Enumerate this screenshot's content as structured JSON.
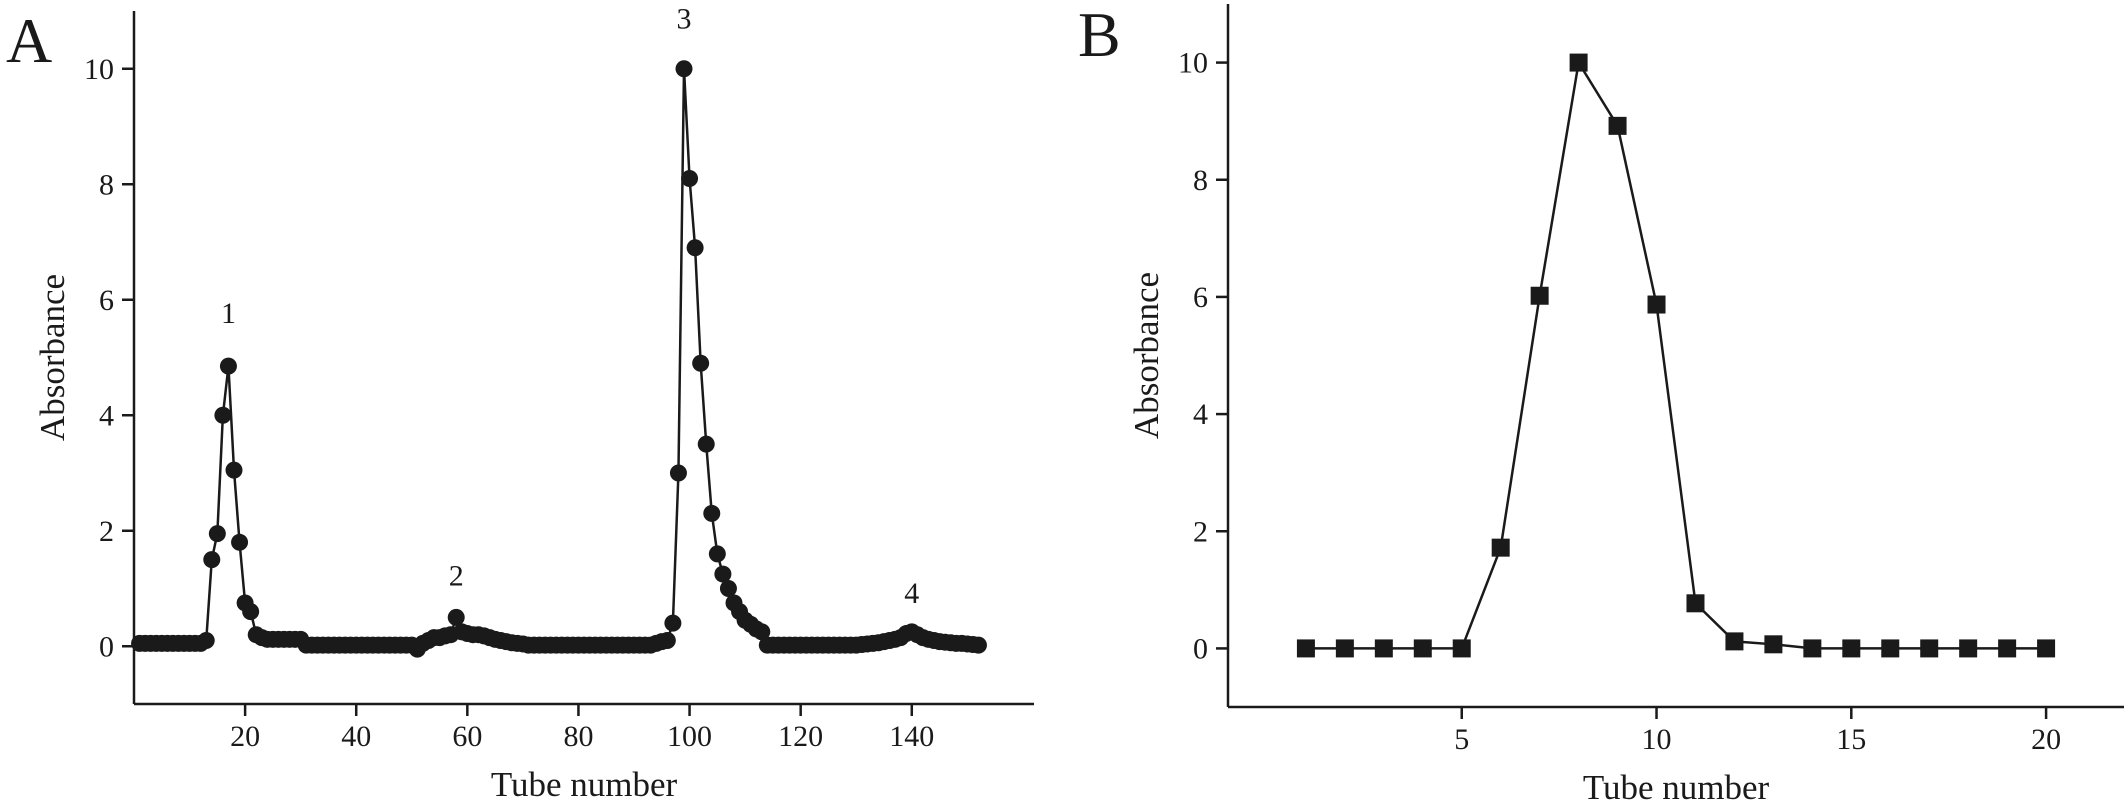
{
  "chart_data": [
    {
      "type": "line",
      "panel_label": "A",
      "xlabel": "Tube number",
      "ylabel": "Absorbance",
      "marker": "circle",
      "color": "#1a1a1a",
      "xlim": [
        0,
        162
      ],
      "xticks": [
        20,
        40,
        60,
        80,
        100,
        120,
        140
      ],
      "ylim": [
        -1,
        11
      ],
      "yticks": [
        0,
        2,
        4,
        6,
        8,
        10
      ],
      "x": [
        1,
        2,
        3,
        4,
        5,
        6,
        7,
        8,
        9,
        10,
        11,
        12,
        13,
        14,
        15,
        16,
        17,
        18,
        19,
        20,
        21,
        22,
        23,
        24,
        25,
        26,
        27,
        28,
        29,
        30,
        31,
        32,
        33,
        34,
        35,
        36,
        37,
        38,
        39,
        40,
        41,
        42,
        43,
        44,
        45,
        46,
        47,
        48,
        49,
        50,
        51,
        52,
        53,
        54,
        55,
        56,
        57,
        58,
        59,
        60,
        61,
        62,
        63,
        64,
        65,
        66,
        67,
        68,
        69,
        70,
        71,
        72,
        73,
        74,
        75,
        76,
        77,
        78,
        79,
        80,
        81,
        82,
        83,
        84,
        85,
        86,
        87,
        88,
        89,
        90,
        91,
        92,
        93,
        94,
        95,
        96,
        97,
        98,
        99,
        100,
        101,
        102,
        103,
        104,
        105,
        106,
        107,
        108,
        109,
        110,
        111,
        112,
        113,
        114,
        115,
        116,
        117,
        118,
        119,
        120,
        121,
        122,
        123,
        124,
        125,
        126,
        127,
        128,
        129,
        130,
        131,
        132,
        133,
        134,
        135,
        136,
        137,
        138,
        139,
        140,
        141,
        142,
        143,
        144,
        145,
        146,
        147,
        148,
        149,
        150,
        151,
        152
      ],
      "values": [
        0.05,
        0.05,
        0.05,
        0.05,
        0.05,
        0.05,
        0.05,
        0.05,
        0.05,
        0.05,
        0.05,
        0.05,
        0.1,
        1.5,
        1.95,
        4.0,
        4.85,
        3.05,
        1.8,
        0.75,
        0.6,
        0.2,
        0.15,
        0.12,
        0.12,
        0.12,
        0.12,
        0.12,
        0.12,
        0.12,
        0.02,
        0.02,
        0.02,
        0.02,
        0.02,
        0.02,
        0.02,
        0.02,
        0.02,
        0.02,
        0.02,
        0.02,
        0.02,
        0.02,
        0.02,
        0.02,
        0.02,
        0.02,
        0.02,
        0.02,
        -0.05,
        0.05,
        0.1,
        0.15,
        0.15,
        0.18,
        0.2,
        0.5,
        0.25,
        0.22,
        0.2,
        0.2,
        0.18,
        0.15,
        0.12,
        0.1,
        0.08,
        0.06,
        0.05,
        0.04,
        0.02,
        0.02,
        0.02,
        0.02,
        0.02,
        0.02,
        0.02,
        0.02,
        0.02,
        0.02,
        0.02,
        0.02,
        0.02,
        0.02,
        0.02,
        0.02,
        0.02,
        0.02,
        0.02,
        0.02,
        0.02,
        0.02,
        0.02,
        0.05,
        0.08,
        0.1,
        0.4,
        3.0,
        10.0,
        8.1,
        6.9,
        4.9,
        3.5,
        2.3,
        1.6,
        1.25,
        1.0,
        0.75,
        0.6,
        0.45,
        0.38,
        0.3,
        0.25,
        0.02,
        0.02,
        0.02,
        0.02,
        0.02,
        0.02,
        0.02,
        0.02,
        0.02,
        0.02,
        0.02,
        0.02,
        0.02,
        0.02,
        0.02,
        0.02,
        0.02,
        0.03,
        0.04,
        0.05,
        0.06,
        0.08,
        0.1,
        0.12,
        0.15,
        0.22,
        0.25,
        0.2,
        0.15,
        0.12,
        0.1,
        0.08,
        0.07,
        0.06,
        0.05,
        0.05,
        0.04,
        0.03,
        0.02
      ],
      "annotations": [
        {
          "text": "1",
          "x": 17,
          "y": 5.6
        },
        {
          "text": "2",
          "x": 58,
          "y": 1.05
        },
        {
          "text": "3",
          "x": 99,
          "y": 10.7
        },
        {
          "text": "4",
          "x": 140,
          "y": 0.75
        }
      ]
    },
    {
      "type": "line",
      "panel_label": "B",
      "xlabel": "Tube number",
      "ylabel": "Absorbance",
      "marker": "square",
      "color": "#1a1a1a",
      "xlim": [
        -1,
        22
      ],
      "xticks": [
        5,
        10,
        15,
        20
      ],
      "ylim": [
        -1,
        11
      ],
      "yticks": [
        0,
        2,
        4,
        6,
        8,
        10
      ],
      "x": [
        1,
        2,
        3,
        4,
        5,
        6,
        7,
        8,
        9,
        10,
        11,
        12,
        13,
        14,
        15,
        16,
        17,
        18,
        19,
        20
      ],
      "values": [
        0,
        0,
        0,
        0,
        0,
        1.72,
        6.02,
        10,
        8.92,
        5.87,
        0.77,
        0.12,
        0.07,
        0,
        0,
        0,
        0,
        0,
        0,
        0
      ]
    }
  ]
}
